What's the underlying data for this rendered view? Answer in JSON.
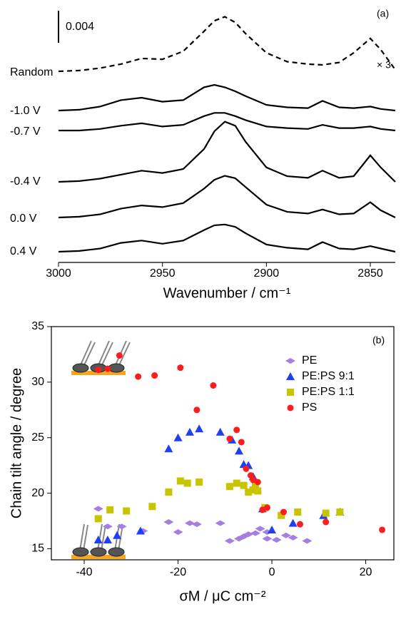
{
  "chart_data": [
    {
      "type": "line",
      "x_label": "Wavenumber / cm⁻¹",
      "panel_label": "(a)",
      "scale_factor_label": "× 3",
      "scale_bar": 0.004,
      "xlim": [
        3000,
        2838
      ],
      "xticks": [
        3000,
        2950,
        2900,
        2850
      ],
      "x": [
        3000,
        2990,
        2980,
        2970,
        2960,
        2950,
        2940,
        2930,
        2925,
        2920,
        2915,
        2910,
        2900,
        2890,
        2880,
        2873,
        2865,
        2858,
        2850,
        2845,
        2838
      ],
      "series": [
        {
          "name": "Random",
          "color": "#000000",
          "line_style": "dashed",
          "values": [
            0,
            0.0001,
            0.0004,
            0.0009,
            0.0016,
            0.0015,
            0.0025,
            0.005,
            0.0063,
            0.0068,
            0.0061,
            0.0047,
            0.0023,
            0.0012,
            0.0009,
            0.0008,
            0.0011,
            0.0023,
            0.0041,
            0.0027,
            0.0002
          ]
        },
        {
          "name": "-1.0 V",
          "color": "#000000",
          "line_style": "solid",
          "values": [
            0,
            0.0001,
            0.0005,
            0.0013,
            0.0016,
            0.0011,
            0.0013,
            0.0029,
            0.0032,
            0.0029,
            0.0024,
            0.0018,
            0.0007,
            0.0004,
            0.0003,
            0.0012,
            0.0004,
            0.0003,
            0.0005,
            0.0002,
            0
          ]
        },
        {
          "name": "-0.7 V",
          "color": "#000000",
          "line_style": "solid",
          "values": [
            0,
            0,
            0.0002,
            0.0006,
            0.0009,
            0.0005,
            0.0007,
            0.0018,
            0.0022,
            0.0022,
            0.0018,
            0.0013,
            0.0005,
            0.0003,
            0.0002,
            0.0007,
            0.0003,
            0.0003,
            0.0005,
            0.0002,
            0
          ]
        },
        {
          "name": "-0.4 V",
          "color": "#000000",
          "line_style": "solid",
          "values": [
            0,
            0.0001,
            0.0004,
            0.0009,
            0.0014,
            0.0011,
            0.0016,
            0.0041,
            0.0063,
            0.0075,
            0.007,
            0.005,
            0.0018,
            0.0007,
            0.0005,
            0.0014,
            0.0005,
            0.0007,
            0.0033,
            0.0018,
            0
          ]
        },
        {
          "name": "0.0 V",
          "color": "#000000",
          "line_style": "solid",
          "values": [
            0,
            0.0001,
            0.0004,
            0.0011,
            0.0015,
            0.0013,
            0.0018,
            0.0036,
            0.0047,
            0.0052,
            0.0049,
            0.0038,
            0.0016,
            0.0007,
            0.0005,
            0.001,
            0.0004,
            0.0005,
            0.0019,
            0.0009,
            0
          ]
        },
        {
          "name": "0.4 V",
          "color": "#000000",
          "line_style": "solid",
          "values": [
            0,
            0.0001,
            0.0004,
            0.0011,
            0.0014,
            0.001,
            0.0014,
            0.0027,
            0.0033,
            0.0034,
            0.0031,
            0.0023,
            0.0009,
            0.0005,
            0.0003,
            0.0012,
            0.0004,
            0.0003,
            0.0007,
            0.0004,
            0
          ]
        }
      ]
    },
    {
      "type": "scatter",
      "panel_label": "(b)",
      "x_label": "σM / μC cm⁻²",
      "y_label": "Chain tilt angle / degree",
      "xlim": [
        -47,
        26
      ],
      "ylim": [
        14,
        35
      ],
      "xticks": [
        -40,
        -20,
        0,
        20
      ],
      "yticks": [
        15,
        20,
        25,
        30,
        35
      ],
      "legend": "upper right",
      "series": [
        {
          "name": "PE",
          "color": "#a27fe0",
          "marker": "diamond",
          "x": [
            -37,
            -35,
            -32,
            -27.5,
            -22,
            -20,
            -17.5,
            -16,
            -11,
            -9,
            -7,
            -6,
            -5,
            -3.5,
            -2.5,
            -1,
            1,
            3,
            4.5,
            7.5,
            -1
          ],
          "y": [
            18.6,
            17,
            17,
            16.6,
            17.4,
            16.5,
            17.3,
            17.2,
            17.3,
            15.7,
            15.9,
            16.1,
            16.3,
            16.4,
            16.8,
            15.9,
            15.8,
            16.2,
            16,
            15.7,
            16.5
          ]
        },
        {
          "name": "PE:PS 9:1",
          "color": "#1f3ff0",
          "marker": "triangle",
          "x": [
            -37,
            -35,
            -33,
            -28,
            -22,
            -20,
            -17.5,
            -15.5,
            -11,
            -8.5,
            -7,
            -6,
            -5,
            -4,
            -2,
            0,
            4.5,
            11,
            14.5
          ],
          "y": [
            15.8,
            15.8,
            16.2,
            16.6,
            24,
            25,
            25.5,
            25.8,
            25.5,
            24.8,
            23.8,
            22.6,
            22.5,
            21.5,
            18.6,
            16.7,
            17.3,
            18,
            18.3
          ]
        },
        {
          "name": "PE:PS 1:1",
          "color": "#c9c400",
          "marker": "square",
          "x": [
            -37,
            -34.5,
            -31,
            -25.5,
            -22,
            -19.5,
            -18,
            -15.5,
            -9,
            -7.5,
            -6,
            -5,
            -4,
            -3.5,
            -3,
            -1.5,
            2,
            5.5,
            11.5,
            14.5
          ],
          "y": [
            17.7,
            18.5,
            18.4,
            18.8,
            20.1,
            21.1,
            20.9,
            21,
            20.6,
            20.9,
            20.7,
            20.1,
            20.3,
            20.7,
            20.2,
            18.7,
            18,
            18.3,
            18.2,
            18.3
          ]
        },
        {
          "name": "PS",
          "color": "#ff1c1c",
          "marker": "circle",
          "x": [
            -37,
            -35,
            -32.5,
            -28.5,
            -25,
            -19.5,
            -12.5,
            -16,
            -9,
            -7.5,
            -6.5,
            -5.5,
            -4.5,
            -4,
            -3,
            -2,
            -1,
            2.5,
            6,
            11.5,
            23.5
          ],
          "y": [
            31.1,
            31.2,
            32.4,
            30.5,
            30.6,
            31.3,
            29.7,
            27.5,
            24.9,
            25.7,
            24.6,
            22.2,
            21.6,
            21.2,
            21,
            18.5,
            18.7,
            18.3,
            17.2,
            17.4,
            16.7
          ]
        }
      ]
    }
  ]
}
